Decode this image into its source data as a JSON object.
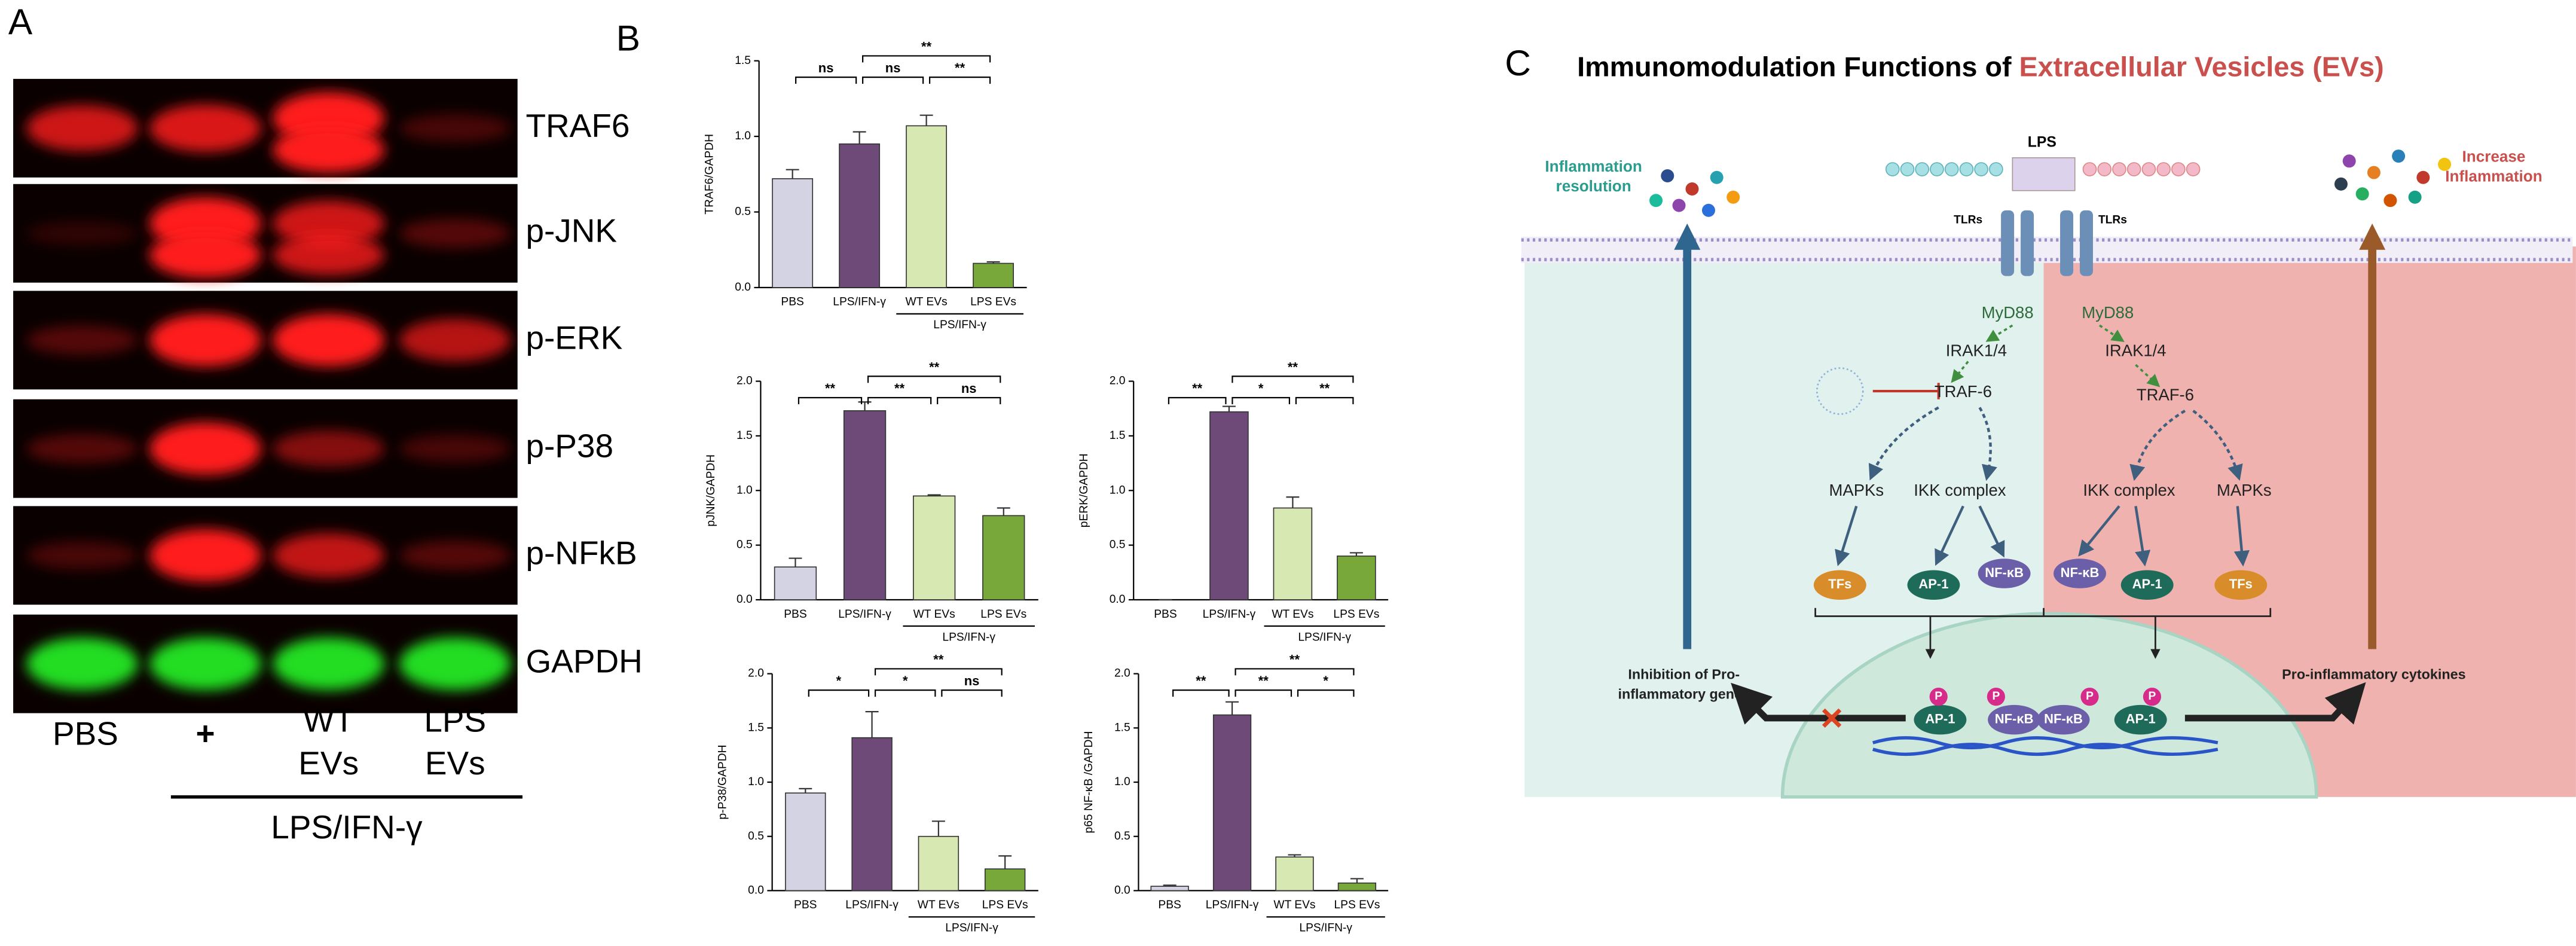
{
  "panel_a": {
    "label": "A",
    "rows": [
      "TRAF6",
      "p-JNK",
      "p-ERK",
      "p-P38",
      "p-NFkB",
      "GAPDH"
    ],
    "lanes": [
      [
        "PBS"
      ],
      [
        "+"
      ],
      [
        "WT",
        "EVs"
      ],
      [
        "LPS",
        "EVs"
      ]
    ],
    "group": "LPS/IFN-γ"
  },
  "panel_b": {
    "label": "B"
  },
  "chart_data": [
    {
      "type": "bar",
      "ylabel": "TRAF6/GAPDH",
      "categories": [
        "PBS",
        "LPS/IFN-γ",
        "WT EVs",
        "LPS EVs"
      ],
      "group_label": "LPS/IFN-γ",
      "values": [
        0.72,
        0.95,
        1.07,
        0.16
      ],
      "errors": [
        0.06,
        0.08,
        0.07,
        0.01
      ],
      "colors": [
        "#d3d3e3",
        "#6e4a78",
        "#d8e8b2",
        "#78a83a"
      ],
      "ylim": [
        0,
        1.5
      ],
      "yticks": [
        {
          "value": 0,
          "label": "0.0"
        },
        0.5,
        {
          "value": 1,
          "label": "1.0"
        },
        1.5
      ],
      "annotations": [
        "ns",
        "ns",
        "**",
        "**"
      ]
    },
    {
      "type": "bar",
      "ylabel": "pJNK/GAPDH",
      "categories": [
        "PBS",
        "LPS/IFN-γ",
        "WT EVs",
        "LPS EVs"
      ],
      "group_label": "LPS/IFN-γ",
      "values": [
        0.3,
        1.73,
        0.95,
        0.77
      ],
      "errors": [
        0.08,
        0.08,
        0.01,
        0.07
      ],
      "colors": [
        "#d3d3e3",
        "#6e4a78",
        "#d8e8b2",
        "#78a83a"
      ],
      "ylim": [
        0,
        2
      ],
      "yticks": [
        {
          "value": 0,
          "label": "0.0"
        },
        0.5,
        {
          "value": 1,
          "label": "1.0"
        },
        1.5,
        {
          "value": 2,
          "label": "2.0"
        }
      ],
      "annotations": [
        "**",
        "**",
        "ns",
        "**"
      ]
    },
    {
      "type": "bar",
      "ylabel": "pERK/GAPDH",
      "categories": [
        "PBS",
        "LPS/IFN-γ",
        "WT EVs",
        "LPS EVs"
      ],
      "group_label": "LPS/IFN-γ",
      "values": [
        0,
        1.72,
        0.84,
        0.4
      ],
      "errors": [
        0,
        0.05,
        0.1,
        0.03
      ],
      "colors": [
        "#d3d3e3",
        "#6e4a78",
        "#d8e8b2",
        "#78a83a"
      ],
      "ylim": [
        0,
        2
      ],
      "yticks": [
        {
          "value": 0,
          "label": "0.0"
        },
        0.5,
        {
          "value": 1,
          "label": "1.0"
        },
        1.5,
        {
          "value": 2,
          "label": "2.0"
        }
      ],
      "annotations": [
        "**",
        "*",
        "**",
        "**"
      ]
    },
    {
      "type": "bar",
      "ylabel": "p-P38/GAPDH",
      "categories": [
        "PBS",
        "LPS/IFN-γ",
        "WT EVs",
        "LPS EVs"
      ],
      "group_label": "LPS/IFN-γ",
      "values": [
        0.9,
        1.41,
        0.5,
        0.2
      ],
      "errors": [
        0.04,
        0.24,
        0.14,
        0.12
      ],
      "colors": [
        "#d3d3e3",
        "#6e4a78",
        "#d8e8b2",
        "#78a83a"
      ],
      "ylim": [
        0,
        2
      ],
      "yticks": [
        {
          "value": 0,
          "label": "0.0"
        },
        0.5,
        {
          "value": 1,
          "label": "1.0"
        },
        1.5,
        {
          "value": 2,
          "label": "2.0"
        }
      ],
      "annotations": [
        "*",
        "*",
        "ns",
        "**"
      ]
    },
    {
      "type": "bar",
      "ylabel": "p65 NF-κB /GAPDH",
      "categories": [
        "PBS",
        "LPS/IFN-γ",
        "WT EVs",
        "LPS EVs"
      ],
      "group_label": "LPS/IFN-γ",
      "values": [
        0.04,
        1.62,
        0.31,
        0.07
      ],
      "errors": [
        0.01,
        0.12,
        0.02,
        0.04
      ],
      "colors": [
        "#d3d3e3",
        "#6e4a78",
        "#d8e8b2",
        "#78a83a"
      ],
      "ylim": [
        0,
        2
      ],
      "yticks": [
        {
          "value": 0,
          "label": "0.0"
        },
        0.5,
        {
          "value": 1,
          "label": "1.0"
        },
        1.5,
        {
          "value": 2,
          "label": "2.0"
        }
      ],
      "annotations": [
        "**",
        "**",
        "*",
        "**"
      ]
    }
  ],
  "panel_c": {
    "label": "C",
    "title": "Immunomodulation Functions of ",
    "title_highlight": "Extracellular Vesicles (EVs)",
    "texts": [
      "Inflammation",
      "resolution",
      "LPS",
      "TLRs",
      "TLRs",
      "Increase",
      "Inflammation",
      "MyD88",
      "MyD88",
      "IRAK1/4",
      "IRAK1/4",
      "TRAF-6",
      "TRAF-6",
      "MAPKs",
      "IKK complex",
      "IKK complex",
      "MAPKs",
      "TFs",
      "AP-1",
      "NF-κB",
      "NF-κB",
      "AP-1",
      "TFs",
      "Inhibition of Pro-",
      "inflammatory  genes",
      "Pro-inflammatory cytokines",
      "AP-1",
      "NF-κB",
      "NF-κB",
      "AP-1",
      "P",
      "P",
      "P",
      "P"
    ]
  }
}
